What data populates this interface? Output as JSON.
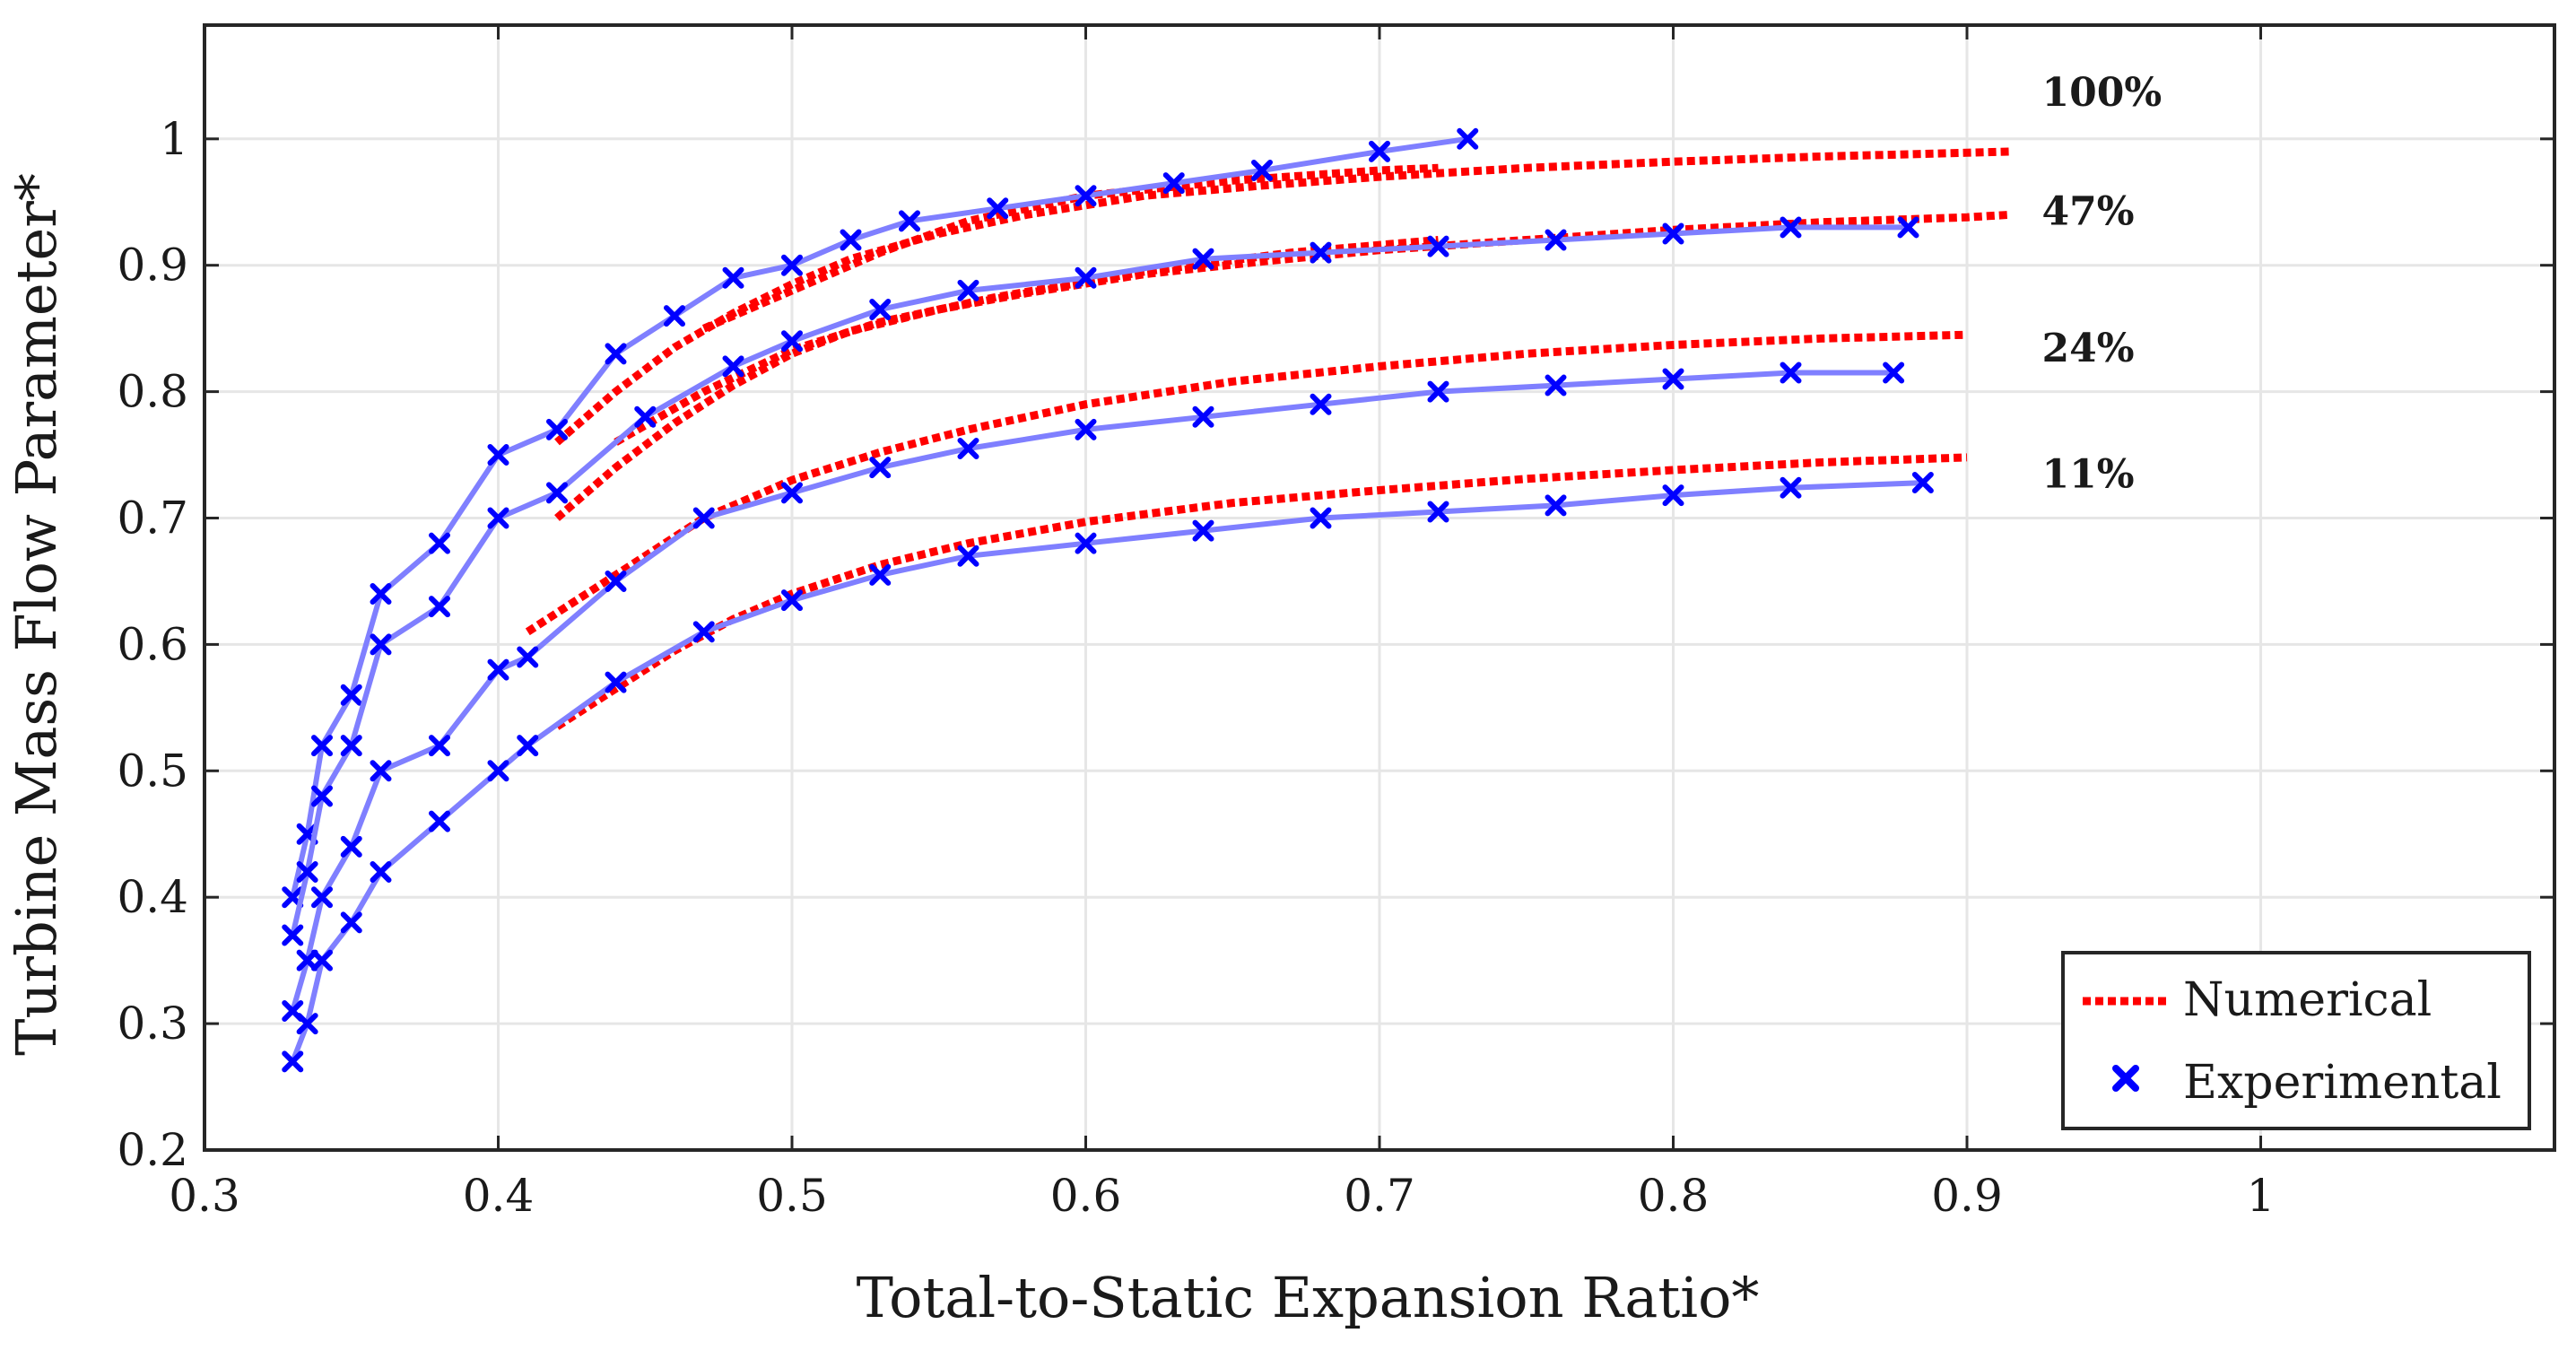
{
  "chart_data": {
    "type": "line",
    "xlabel": "Total-to-Static Expansion Ratio*",
    "ylabel": "Turbine Mass Flow Parameter*",
    "xlim": [
      0.3,
      1.1
    ],
    "ylim": [
      0.2,
      1.09
    ],
    "x_ticks": [
      0.3,
      0.4,
      0.5,
      0.6,
      0.7,
      0.8,
      0.9,
      1
    ],
    "x_tick_labels": [
      "0.3",
      "0.4",
      "0.5",
      "0.6",
      "0.7",
      "0.8",
      "0.9",
      "1"
    ],
    "y_ticks": [
      0.2,
      0.3,
      0.4,
      0.5,
      0.6,
      0.7,
      0.8,
      0.9,
      1
    ],
    "y_tick_labels": [
      "0.2",
      "0.3",
      "0.4",
      "0.5",
      "0.6",
      "0.7",
      "0.8",
      "0.9",
      "1"
    ],
    "grid": true,
    "legend": {
      "position": "bottom-right",
      "entries": [
        {
          "label": "Numerical",
          "style": "dotted-line",
          "color": "#ff0000"
        },
        {
          "label": "Experimental",
          "style": "x-marker",
          "color": "#0000ff"
        }
      ]
    },
    "colors": {
      "numerical": "#ff0000",
      "experimental": "#0000ff",
      "experimental_line": "#7f7fff",
      "grid": "#e6e6e6"
    },
    "curve_labels": [
      {
        "text": "100%",
        "x": 0.92,
        "y": 1.026
      },
      {
        "text": "47%",
        "x": 0.92,
        "y": 0.932
      },
      {
        "text": "24%",
        "x": 0.92,
        "y": 0.824
      },
      {
        "text": "11%",
        "x": 0.92,
        "y": 0.724
      }
    ],
    "series": [
      {
        "name": "Numerical 100%",
        "kind": "numerical",
        "x": [
          0.42,
          0.44,
          0.46,
          0.48,
          0.5,
          0.52,
          0.55,
          0.58,
          0.62,
          0.66,
          0.7,
          0.75,
          0.8,
          0.85,
          0.9,
          0.915
        ],
        "y": [
          0.76,
          0.8,
          0.835,
          0.862,
          0.885,
          0.905,
          0.925,
          0.94,
          0.955,
          0.963,
          0.97,
          0.977,
          0.982,
          0.986,
          0.989,
          0.99
        ]
      },
      {
        "name": "Numerical 100% (b)",
        "kind": "numerical",
        "x": [
          0.47,
          0.5,
          0.53,
          0.56,
          0.6,
          0.65,
          0.7,
          0.72
        ],
        "y": [
          0.85,
          0.88,
          0.91,
          0.935,
          0.955,
          0.967,
          0.975,
          0.977
        ]
      },
      {
        "name": "Numerical 47%",
        "kind": "numerical",
        "x": [
          0.42,
          0.44,
          0.46,
          0.48,
          0.5,
          0.52,
          0.55,
          0.58,
          0.62,
          0.66,
          0.7,
          0.75,
          0.8,
          0.85,
          0.9,
          0.915
        ],
        "y": [
          0.7,
          0.74,
          0.775,
          0.805,
          0.83,
          0.848,
          0.865,
          0.878,
          0.893,
          0.903,
          0.912,
          0.92,
          0.928,
          0.934,
          0.938,
          0.94
        ]
      },
      {
        "name": "Numerical 47% (b)",
        "kind": "numerical",
        "x": [
          0.44,
          0.47,
          0.5,
          0.53,
          0.57,
          0.62,
          0.67,
          0.72
        ],
        "y": [
          0.76,
          0.8,
          0.833,
          0.855,
          0.875,
          0.895,
          0.91,
          0.92
        ]
      },
      {
        "name": "Numerical 24%",
        "kind": "numerical",
        "x": [
          0.41,
          0.43,
          0.45,
          0.47,
          0.5,
          0.53,
          0.56,
          0.6,
          0.65,
          0.7,
          0.75,
          0.8,
          0.85,
          0.9
        ],
        "y": [
          0.61,
          0.64,
          0.67,
          0.7,
          0.73,
          0.752,
          0.77,
          0.79,
          0.808,
          0.82,
          0.83,
          0.837,
          0.842,
          0.845
        ]
      },
      {
        "name": "Numerical 11%",
        "kind": "numerical",
        "x": [
          0.42,
          0.44,
          0.46,
          0.48,
          0.5,
          0.53,
          0.56,
          0.6,
          0.65,
          0.7,
          0.75,
          0.8,
          0.85,
          0.9
        ],
        "y": [
          0.535,
          0.565,
          0.595,
          0.62,
          0.64,
          0.663,
          0.68,
          0.697,
          0.712,
          0.722,
          0.731,
          0.738,
          0.744,
          0.748
        ]
      },
      {
        "name": "Experimental 100%",
        "kind": "experimental",
        "x": [
          0.33,
          0.335,
          0.34,
          0.35,
          0.36,
          0.38,
          0.4,
          0.42,
          0.44,
          0.46,
          0.48,
          0.5,
          0.52,
          0.54,
          0.57,
          0.6,
          0.63,
          0.66,
          0.7,
          0.73
        ],
        "y": [
          0.4,
          0.45,
          0.52,
          0.56,
          0.64,
          0.68,
          0.75,
          0.77,
          0.83,
          0.86,
          0.89,
          0.9,
          0.92,
          0.935,
          0.945,
          0.955,
          0.965,
          0.975,
          0.99,
          1.0
        ]
      },
      {
        "name": "Experimental 47%",
        "kind": "experimental",
        "x": [
          0.33,
          0.335,
          0.34,
          0.35,
          0.36,
          0.38,
          0.4,
          0.42,
          0.45,
          0.48,
          0.5,
          0.53,
          0.56,
          0.6,
          0.64,
          0.68,
          0.72,
          0.76,
          0.8,
          0.84,
          0.88
        ],
        "y": [
          0.37,
          0.42,
          0.48,
          0.52,
          0.6,
          0.63,
          0.7,
          0.72,
          0.78,
          0.82,
          0.84,
          0.865,
          0.88,
          0.89,
          0.905,
          0.91,
          0.915,
          0.92,
          0.925,
          0.93,
          0.93
        ]
      },
      {
        "name": "Experimental 24%",
        "kind": "experimental",
        "x": [
          0.33,
          0.335,
          0.34,
          0.35,
          0.36,
          0.38,
          0.4,
          0.41,
          0.44,
          0.47,
          0.5,
          0.53,
          0.56,
          0.6,
          0.64,
          0.68,
          0.72,
          0.76,
          0.8,
          0.84,
          0.875
        ],
        "y": [
          0.31,
          0.35,
          0.4,
          0.44,
          0.5,
          0.52,
          0.58,
          0.59,
          0.65,
          0.7,
          0.72,
          0.74,
          0.755,
          0.77,
          0.78,
          0.79,
          0.8,
          0.805,
          0.81,
          0.815,
          0.815
        ]
      },
      {
        "name": "Experimental 11%",
        "kind": "experimental",
        "x": [
          0.33,
          0.335,
          0.34,
          0.35,
          0.36,
          0.38,
          0.4,
          0.41,
          0.44,
          0.47,
          0.5,
          0.53,
          0.56,
          0.6,
          0.64,
          0.68,
          0.72,
          0.76,
          0.8,
          0.84,
          0.885
        ],
        "y": [
          0.27,
          0.3,
          0.35,
          0.38,
          0.42,
          0.46,
          0.5,
          0.52,
          0.57,
          0.61,
          0.635,
          0.655,
          0.67,
          0.68,
          0.69,
          0.7,
          0.705,
          0.71,
          0.718,
          0.724,
          0.728
        ]
      }
    ]
  }
}
